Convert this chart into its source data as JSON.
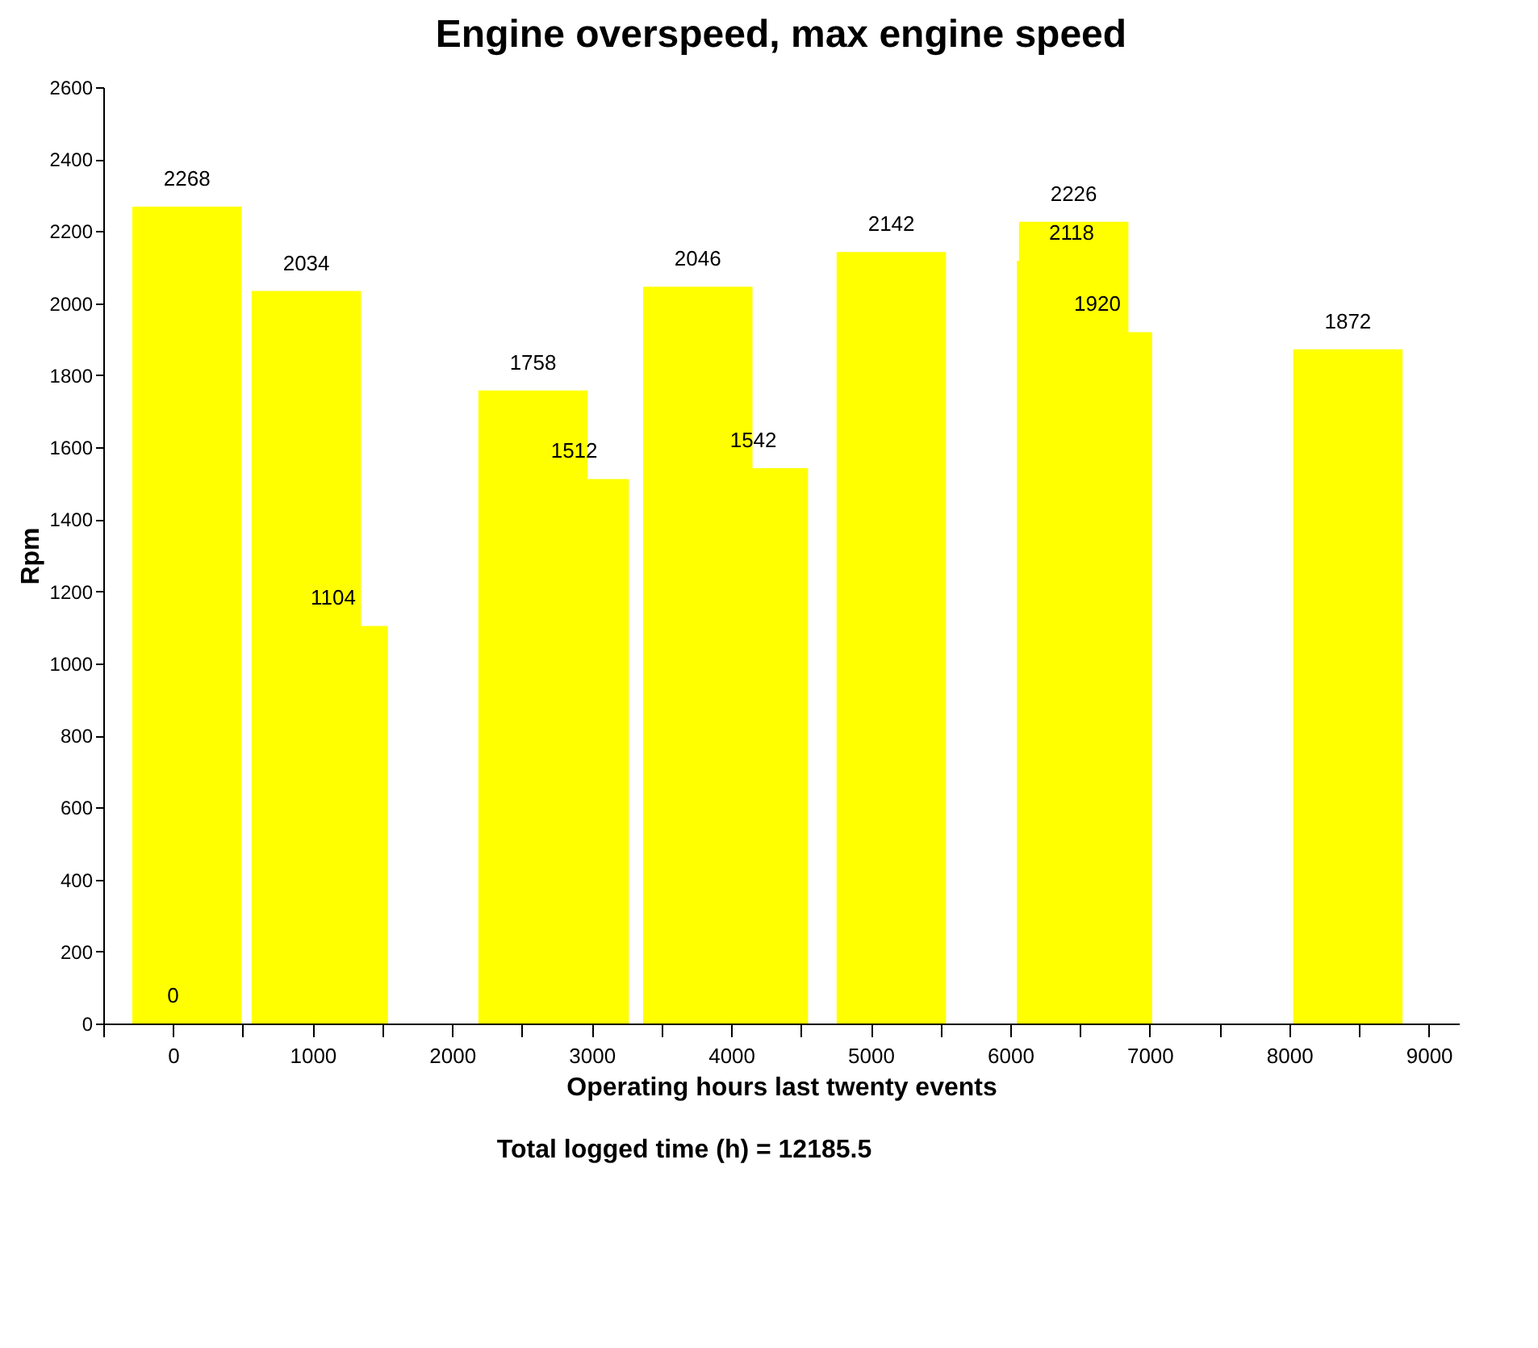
{
  "chart_data": {
    "type": "bar",
    "title": "Engine overspeed, max engine speed",
    "xlabel": "Operating hours last twenty events",
    "ylabel": "Rpm",
    "annotations": [
      "Total logged time (h) = 12185.5"
    ],
    "x": [
      0,
      100,
      955,
      1148,
      2580,
      2875,
      3761,
      4159,
      5148,
      6440,
      6455,
      6625,
      8420
    ],
    "series": [
      {
        "color": "#ffff00",
        "values": [
          0,
          2268,
          2034,
          1104,
          1758,
          1512,
          2046,
          1542,
          2142,
          2118,
          2226,
          1920,
          1872
        ]
      }
    ],
    "data_labels": true,
    "grid": false,
    "legend": false,
    "xlim": [
      -500,
      9216
    ],
    "xticks": [
      {
        "value": -500,
        "label": null
      },
      0,
      {
        "value": 500,
        "label": null
      },
      1000,
      {
        "value": 1500,
        "label": null
      },
      2000,
      {
        "value": 2500,
        "label": null
      },
      3000,
      {
        "value": 3500,
        "label": null
      },
      4000,
      {
        "value": 4500,
        "label": null
      },
      5000,
      {
        "value": 5500,
        "label": null
      },
      6000,
      {
        "value": 6500,
        "label": null
      },
      7000,
      {
        "value": 7500,
        "label": null
      },
      8000,
      {
        "value": 8500,
        "label": null
      },
      9000
    ],
    "ylim": [
      0,
      2600
    ],
    "yticks": [
      0,
      200,
      400,
      600,
      800,
      1000,
      1200,
      1400,
      1600,
      1800,
      2000,
      2200,
      2400,
      2600
    ]
  }
}
